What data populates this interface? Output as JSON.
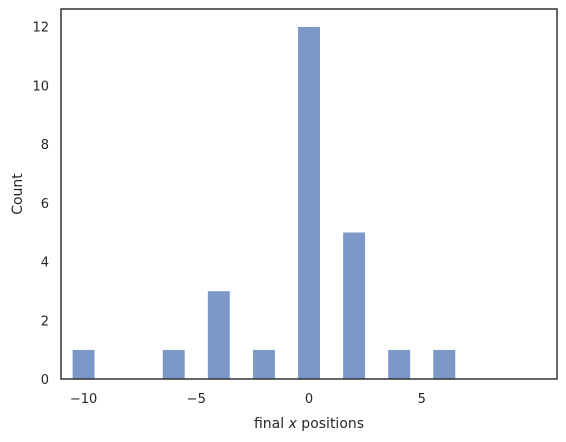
{
  "chart_data": {
    "type": "bar",
    "title": "",
    "xlabel": "final x positions",
    "xlabel_parts": {
      "prefix": "final ",
      "var": "x",
      "suffix": " positions"
    },
    "ylabel": "Count",
    "bin_width": 1,
    "bars": [
      {
        "x": -10,
        "count": 1
      },
      {
        "x": -6,
        "count": 1
      },
      {
        "x": -4,
        "count": 3
      },
      {
        "x": -2,
        "count": 1
      },
      {
        "x": 0,
        "count": 12
      },
      {
        "x": 2,
        "count": 5
      },
      {
        "x": 4,
        "count": 1
      },
      {
        "x": 6,
        "count": 1
      }
    ],
    "xlim": [
      -11,
      11
    ],
    "ylim": [
      0,
      12.6
    ],
    "xticks": [
      -10,
      -5,
      0,
      5
    ],
    "xtick_labels": [
      "−10",
      "−5",
      "0",
      "5"
    ],
    "yticks": [
      0,
      2,
      4,
      6,
      8,
      10,
      12
    ],
    "ytick_labels": [
      "0",
      "2",
      "4",
      "6",
      "8",
      "10",
      "12"
    ],
    "grid": false,
    "colors": {
      "bar": "#7b98c8",
      "axes": "#262626",
      "background": "#ffffff"
    }
  }
}
